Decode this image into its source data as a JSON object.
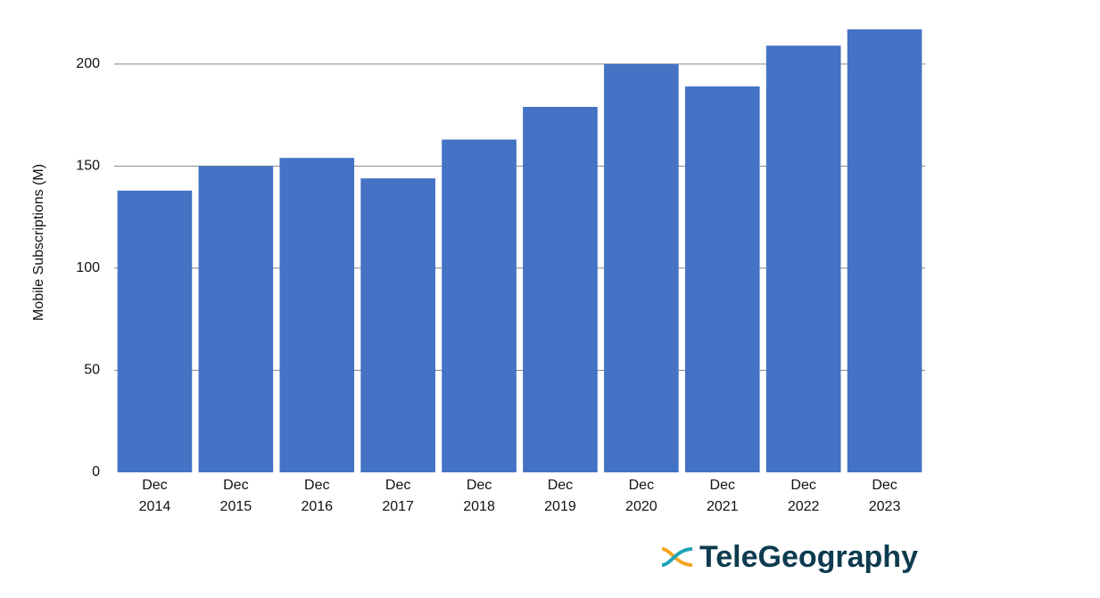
{
  "chart_data": {
    "type": "bar",
    "y_label": "Mobile Subscriptions (M)",
    "categories": [
      "Dec\n2014",
      "Dec\n2015",
      "Dec\n2016",
      "Dec\n2017",
      "Dec\n2018",
      "Dec\n2019",
      "Dec\n2020",
      "Dec\n2021",
      "Dec\n2022",
      "Dec\n2023"
    ],
    "values": [
      138,
      150,
      154,
      144,
      163,
      179,
      200,
      189,
      209,
      217
    ],
    "color": "#4472c4",
    "ylim": [
      0,
      220
    ],
    "yticks": [
      0,
      50,
      100,
      150,
      200
    ],
    "grid": true
  },
  "logo": "TeleGeography"
}
